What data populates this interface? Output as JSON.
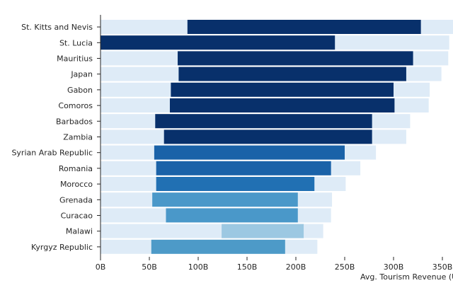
{
  "chart_data": {
    "type": "bar",
    "orientation": "horizontal",
    "xlabel": "Avg. Tourism Revenue (USD)",
    "xlim": [
      0,
      350
    ],
    "x_ticks": [
      0,
      50,
      100,
      150,
      200,
      250,
      300,
      350
    ],
    "x_tick_labels": [
      "0B",
      "50B",
      "100B",
      "150B",
      "200B",
      "250B",
      "300B",
      "350B"
    ],
    "categories": [
      "St. Kitts and Nevis",
      "St. Lucia",
      "Mauritius",
      "Japan",
      "Gabon",
      "Comoros",
      "Barbados",
      "Zambia",
      "Syrian Arab Republic",
      "Romania",
      "Morocco",
      "Grenada",
      "Curacao",
      "Malawi",
      "Kyrgyz Republic"
    ],
    "series": [
      {
        "name": "Avg. Tourism Revenue",
        "start": [
          89,
          0,
          79,
          80,
          72,
          71,
          56,
          65,
          55,
          57,
          57,
          53,
          67,
          124,
          52
        ],
        "end": [
          328,
          240,
          320,
          313,
          300,
          301,
          278,
          278,
          250,
          236,
          219,
          202,
          202,
          208,
          189
        ]
      },
      {
        "name": "Range band",
        "start": [
          0,
          0,
          0,
          0,
          0,
          0,
          0,
          0,
          0,
          0,
          0,
          0,
          0,
          0,
          0
        ],
        "end": [
          362,
          357,
          356,
          349,
          337,
          336,
          317,
          313,
          282,
          266,
          251,
          237,
          236,
          228,
          222
        ]
      }
    ],
    "bar_colors": [
      "#08306b",
      "#08306b",
      "#08306b",
      "#08306b",
      "#08306b",
      "#08306b",
      "#08306b",
      "#08306b",
      "#1a62a8",
      "#1a62a8",
      "#2170b3",
      "#4a98c9",
      "#4a98c9",
      "#9cc8e2",
      "#4d9ac8"
    ],
    "band_color": "#deebf7",
    "legend": "none",
    "grid": false
  }
}
